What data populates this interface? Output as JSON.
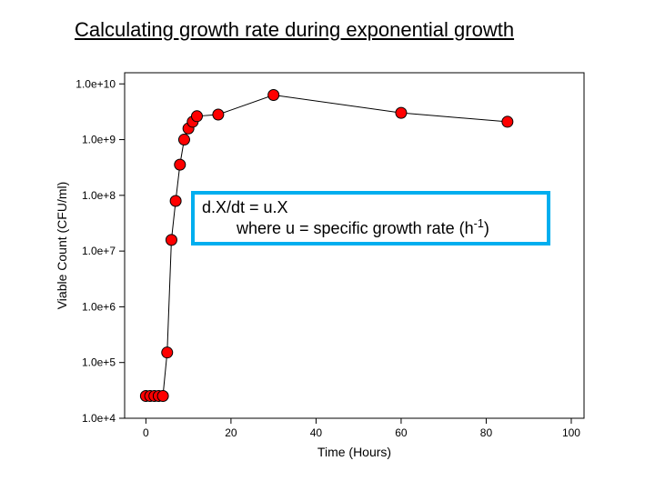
{
  "title": "Calculating growth rate during exponential growth",
  "chart": {
    "type": "scatter-line",
    "background_color": "#ffffff",
    "plot_border_color": "#000000",
    "plot_border_width": 1,
    "tick_color": "#000000",
    "tick_length": 6,
    "marker_fill": "#ff0000",
    "marker_stroke": "#000000",
    "marker_stroke_width": 1,
    "marker_radius": 6,
    "line_color": "#000000",
    "line_width": 1,
    "x_axis": {
      "label": "Time (Hours)",
      "label_fontsize": 14,
      "min": -5,
      "max": 103,
      "ticks": [
        0,
        20,
        40,
        60,
        80,
        100
      ],
      "tick_labels": [
        "0",
        "20",
        "40",
        "60",
        "80",
        "100"
      ],
      "tick_fontsize": 12
    },
    "y_axis": {
      "label": "Viable Count (CFU/ml)",
      "label_fontsize": 14,
      "scale": "log",
      "min_exp": 4,
      "max_exp": 10.2,
      "ticks_exp": [
        4,
        5,
        6,
        7,
        8,
        9,
        10
      ],
      "tick_labels": [
        "1.0e+4",
        "1.0e+5",
        "1.0e+6",
        "1.0e+7",
        "1.0e+8",
        "1.0e+9",
        "1.0e+10"
      ],
      "tick_fontsize": 12
    },
    "points": [
      [
        0.0,
        4.4
      ],
      [
        1.0,
        4.4
      ],
      [
        2.0,
        4.4
      ],
      [
        3.0,
        4.4
      ],
      [
        4.0,
        4.4
      ],
      [
        5.0,
        5.18
      ],
      [
        6.0,
        7.2
      ],
      [
        7.0,
        7.9
      ],
      [
        8.0,
        8.55
      ],
      [
        9.0,
        9.0
      ],
      [
        10.0,
        9.2
      ],
      [
        11.0,
        9.32
      ],
      [
        12.0,
        9.42
      ],
      [
        17.0,
        9.45
      ],
      [
        30.0,
        9.8
      ],
      [
        60.0,
        9.48
      ],
      [
        85.0,
        9.32
      ]
    ]
  },
  "equation_box": {
    "border_color": "#00aeef",
    "border_width": 4,
    "bg_color": "#ffffff",
    "line1": "d.X/dt = u.X",
    "line2_prefix": "where u = specific growth rate (h",
    "line2_sup": "-1",
    "line2_suffix": ")"
  }
}
